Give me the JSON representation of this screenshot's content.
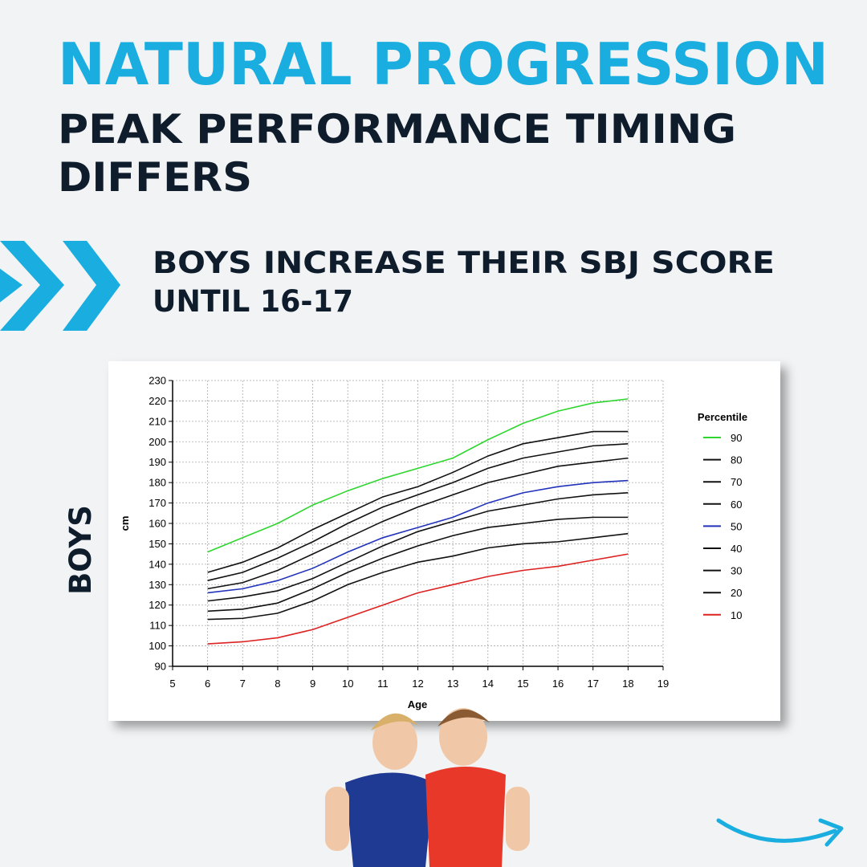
{
  "header": {
    "title": "NATURAL PROGRESSION",
    "subtitle_lines": [
      "PEAK PERFORMANCE TIMING",
      "DIFFERS"
    ]
  },
  "point": {
    "lines": [
      "BOYS INCREASE THEIR SBJ SCORE",
      "UNTIL 16-17"
    ]
  },
  "side_label": "BOYS",
  "chart_data": {
    "type": "line",
    "x_label": "Age",
    "y_label": "cm",
    "legend_title": "Percentile",
    "x": [
      6,
      7,
      8,
      9,
      10,
      11,
      12,
      13,
      14,
      15,
      16,
      17,
      18
    ],
    "xlim": [
      5,
      19
    ],
    "xticks": [
      5,
      6,
      7,
      8,
      9,
      10,
      11,
      12,
      13,
      14,
      15,
      16,
      17,
      18,
      19
    ],
    "ylim": [
      90,
      230
    ],
    "yticks": [
      90,
      100,
      110,
      120,
      130,
      140,
      150,
      160,
      170,
      180,
      190,
      200,
      210,
      220,
      230
    ],
    "grid": true,
    "legend": "right",
    "series": [
      {
        "name": "90",
        "color": "#2fd62f",
        "values": [
          146,
          153,
          160,
          169,
          176,
          182,
          187,
          192,
          201,
          209,
          215,
          219,
          221
        ]
      },
      {
        "name": "80",
        "color": "#111111",
        "values": [
          136,
          141,
          148,
          157,
          165,
          173,
          178,
          185,
          193,
          199,
          202,
          205,
          205
        ]
      },
      {
        "name": "70",
        "color": "#111111",
        "values": [
          132,
          136,
          143,
          151,
          160,
          168,
          174,
          180,
          187,
          192,
          195,
          198,
          199
        ]
      },
      {
        "name": "60",
        "color": "#111111",
        "values": [
          128,
          131,
          137,
          145,
          153,
          161,
          168,
          174,
          180,
          184,
          188,
          190,
          192
        ]
      },
      {
        "name": "50",
        "color": "#2233bb",
        "values": [
          126,
          128,
          132,
          138,
          146,
          153,
          158,
          163,
          170,
          175,
          178,
          180,
          181
        ]
      },
      {
        "name": "40",
        "color": "#111111",
        "values": [
          122,
          124,
          127,
          133,
          141,
          149,
          156,
          161,
          166,
          169,
          172,
          174,
          175
        ]
      },
      {
        "name": "30",
        "color": "#111111",
        "values": [
          117,
          118,
          121,
          128,
          136,
          143,
          149,
          154,
          158,
          160,
          162,
          163,
          163
        ]
      },
      {
        "name": "20",
        "color": "#111111",
        "values": [
          113,
          113.5,
          116,
          122,
          130,
          136,
          141,
          144,
          148,
          150,
          151,
          153,
          155
        ]
      },
      {
        "name": "10",
        "color": "#dd2222",
        "values": [
          101,
          102,
          104,
          108,
          114,
          120,
          126,
          130,
          134,
          137,
          139,
          142,
          145
        ]
      }
    ]
  }
}
